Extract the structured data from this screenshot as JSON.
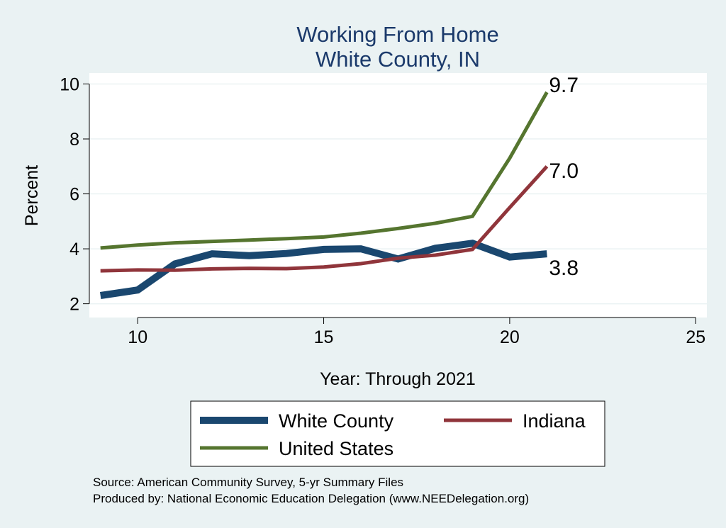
{
  "chart_data": {
    "type": "line",
    "title": [
      "Working From Home",
      "White County, IN"
    ],
    "xlabel": "Year: Through 2021",
    "ylabel": "Percent",
    "xlim": [
      8.7,
      25.3
    ],
    "ylim": [
      1.5,
      10.4
    ],
    "xticks": [
      10,
      15,
      20,
      25
    ],
    "yticks": [
      2,
      4,
      6,
      8,
      10
    ],
    "grid": true,
    "legend_position": "bottom",
    "x": [
      9,
      10,
      11,
      12,
      13,
      14,
      15,
      16,
      17,
      18,
      19,
      20,
      21
    ],
    "series": [
      {
        "name": "White County",
        "color": "#1a476f",
        "line_weight": "thick",
        "values": [
          2.3,
          2.5,
          3.45,
          3.82,
          3.75,
          3.83,
          3.98,
          4.0,
          3.63,
          4.02,
          4.2,
          3.7,
          3.82
        ],
        "end_label": "3.8"
      },
      {
        "name": "Indiana",
        "color": "#90353b",
        "line_weight": "medium",
        "values": [
          3.2,
          3.23,
          3.22,
          3.27,
          3.29,
          3.28,
          3.34,
          3.46,
          3.66,
          3.77,
          3.98,
          5.5,
          7.0
        ],
        "end_label": "7.0"
      },
      {
        "name": "United States",
        "color": "#55752f",
        "line_weight": "medium",
        "values": [
          4.03,
          4.14,
          4.22,
          4.27,
          4.32,
          4.37,
          4.43,
          4.57,
          4.74,
          4.93,
          5.18,
          7.3,
          9.7
        ],
        "end_label": "9.7"
      }
    ]
  },
  "footnotes": [
    "Source: American Community Survey, 5-yr Summary Files",
    "Produced by: National Economic Education Delegation (www.NEEDelegation.org)"
  ]
}
